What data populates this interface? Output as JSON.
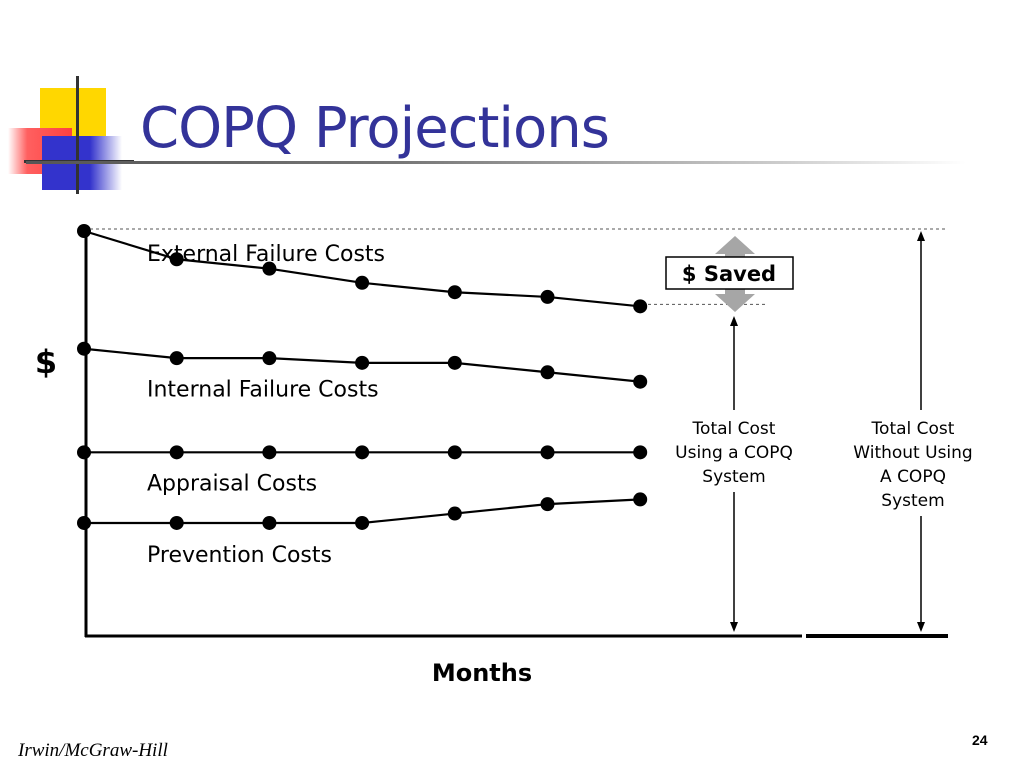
{
  "slide": {
    "title": "COPQ Projections",
    "footer_left": "Irwin/McGraw-Hill",
    "page_number": "24"
  },
  "chart_data": {
    "type": "line",
    "ylabel": "$",
    "xlabel": "Months",
    "x": [
      1,
      2,
      3,
      4,
      5,
      6,
      7
    ],
    "ylim": [
      0,
      10
    ],
    "series": [
      {
        "name": "External Failure Costs",
        "values": [
          8.6,
          8.0,
          7.8,
          7.5,
          7.3,
          7.2,
          7.0
        ]
      },
      {
        "name": "Internal Failure Costs",
        "values": [
          6.1,
          5.9,
          5.9,
          5.8,
          5.8,
          5.6,
          5.4
        ]
      },
      {
        "name": "Appraisal Costs",
        "values": [
          3.9,
          3.9,
          3.9,
          3.9,
          3.9,
          3.9,
          3.9
        ]
      },
      {
        "name": "Prevention Costs",
        "values": [
          2.4,
          2.4,
          2.4,
          2.4,
          2.6,
          2.8,
          2.9
        ]
      }
    ],
    "annotations": {
      "saved_label": "$ Saved",
      "with_copq": [
        "Total Cost",
        "Using a COPQ",
        "System"
      ],
      "without_copq": [
        "Total Cost",
        "Without Using",
        "A COPQ",
        "System"
      ]
    },
    "grid": false,
    "legend": "none"
  }
}
